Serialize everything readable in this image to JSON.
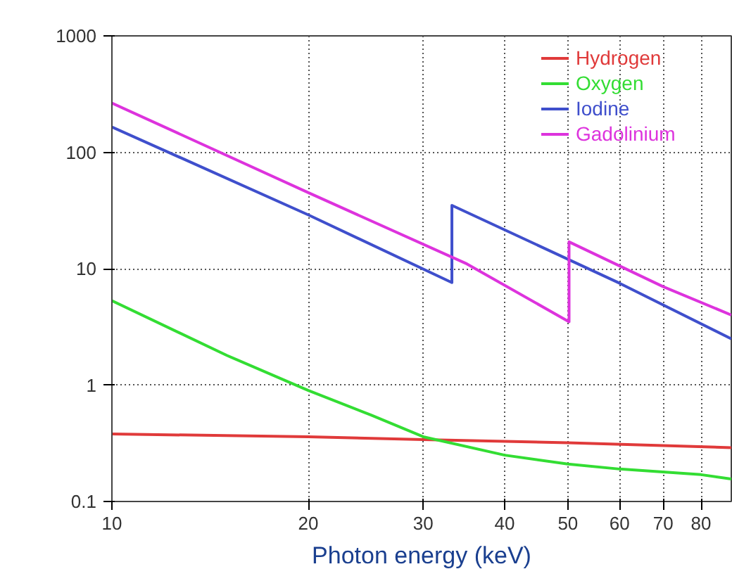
{
  "chart_data": {
    "type": "line",
    "xlabel": "Photon energy (keV)",
    "log": "xy",
    "grid": true,
    "legend": "top right",
    "line_style": "solid",
    "xlim": [
      10,
      89
    ],
    "ylim": [
      0.1,
      1000
    ],
    "xticks": [
      10,
      20,
      30,
      40,
      50,
      60,
      70,
      80
    ],
    "yticks": [
      0.1,
      1,
      10,
      100,
      1000
    ],
    "series": [
      {
        "name": "Hydrogen",
        "color": "#e03a3a",
        "x": [
          10,
          20,
          30,
          50,
          89
        ],
        "values": [
          0.38,
          0.36,
          0.34,
          0.32,
          0.29
        ]
      },
      {
        "name": "Oxygen",
        "color": "#33dd33",
        "x": [
          10,
          15,
          20,
          25,
          30,
          40,
          50,
          60,
          80,
          89
        ],
        "values": [
          5.3,
          1.8,
          0.9,
          0.55,
          0.36,
          0.25,
          0.21,
          0.19,
          0.17,
          0.156
        ]
      },
      {
        "name": "Iodine",
        "color": "#3f4fcc",
        "x": [
          10,
          20,
          33.2,
          33.2,
          60,
          89
        ],
        "values": [
          165,
          29,
          7.6,
          35,
          7.5,
          2.5
        ]
      },
      {
        "name": "Gadolinium",
        "color": "#dd33dd",
        "x": [
          10,
          20,
          35,
          50.2,
          50.2,
          70,
          89
        ],
        "values": [
          265,
          45,
          11,
          3.5,
          17,
          7,
          4.0
        ]
      }
    ]
  }
}
